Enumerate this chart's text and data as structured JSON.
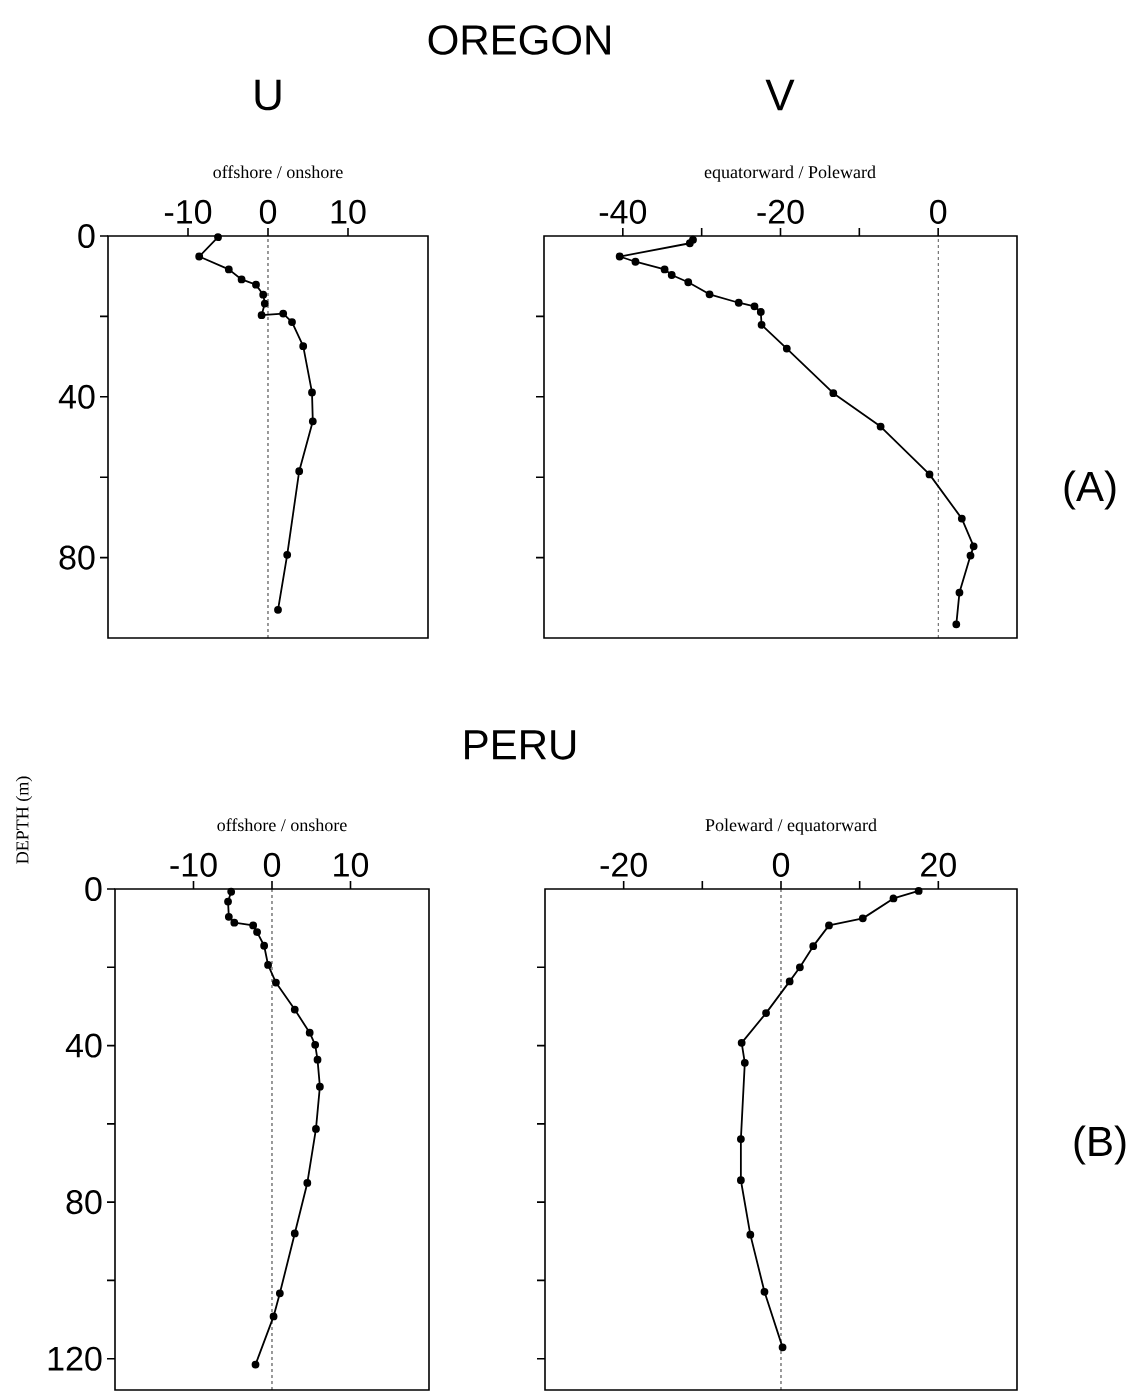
{
  "chart_data": [
    {
      "type": "line",
      "title": "U",
      "xlabel": "offshore  / onshore",
      "annotations": [
        "OREGON"
      ],
      "color": "#000000",
      "marker": "circle",
      "x": [
        -6.25,
        -8.6,
        -4.9,
        -3.3,
        -1.5,
        -0.6,
        -0.4,
        -0.8,
        1.9,
        3.0,
        4.4,
        5.5,
        5.6,
        3.9,
        2.4,
        1.25
      ],
      "values": [
        0.3,
        5.1,
        8.3,
        10.8,
        12.1,
        14.6,
        16.8,
        19.7,
        19.3,
        21.4,
        27.4,
        38.9,
        46.1,
        58.5,
        79.3,
        93
      ],
      "xlim": [
        -20,
        20
      ],
      "ylim": [
        100,
        0
      ],
      "xticks": [
        -10,
        0,
        10
      ],
      "yticks": [
        0,
        {
          "value": 20,
          "label": null
        },
        40,
        {
          "value": 60,
          "label": null
        },
        80
      ],
      "ref_lines": [
        {
          "axis": "x",
          "value": 0,
          "line_style": "dashed"
        }
      ]
    },
    {
      "type": "line",
      "title": "V",
      "xlabel": "equatorward  / Poleward",
      "annotations": [
        "(A)"
      ],
      "color": "#000000",
      "marker": "circle",
      "x": [
        -31.1,
        -31.5,
        -40.4,
        -38.4,
        -34.7,
        -33.8,
        -31.7,
        -29.0,
        -25.3,
        -23.3,
        -22.5,
        -22.4,
        -19.2,
        -13.3,
        -7.3,
        -1.1,
        3.0,
        4.5,
        4.1,
        2.7,
        2.3
      ],
      "values": [
        0.9,
        1.8,
        5.1,
        6.4,
        8.3,
        9.7,
        11.5,
        14.5,
        16.6,
        17.5,
        18.9,
        22.1,
        28.0,
        39.1,
        47.4,
        59.3,
        70.3,
        77.2,
        79.5,
        88.7,
        96.6
      ],
      "xlim": [
        -50,
        10
      ],
      "ylim": [
        100,
        0
      ],
      "xticks": [
        -40,
        {
          "value": -30,
          "label": null
        },
        -20,
        {
          "value": -10,
          "label": null
        },
        0
      ],
      "yticks": [
        20,
        40,
        60,
        80
      ],
      "tick_labels": "x",
      "ref_lines": [
        {
          "axis": "x",
          "value": 0,
          "line_style": "dashed"
        }
      ]
    },
    {
      "type": "line",
      "xlabel": "offshore  / onshore",
      "ylabel": "DEPTH  (m)",
      "annotations": [
        "PERU"
      ],
      "color": "#000000",
      "marker": "circle",
      "x": [
        -5.2,
        -5.6,
        -5.5,
        -4.8,
        -2.4,
        -1.9,
        -1.0,
        -0.5,
        0.5,
        2.9,
        4.8,
        5.5,
        5.8,
        6.1,
        5.6,
        4.5,
        2.9,
        1.0,
        0.2,
        -2.1
      ],
      "values": [
        0.7,
        3.2,
        7.1,
        8.6,
        9.3,
        11.0,
        14.5,
        19.4,
        23.9,
        30.8,
        36.7,
        39.8,
        43.6,
        50.5,
        61.3,
        75.1,
        88.0,
        103.3,
        109.2,
        121.5
      ],
      "xlim": [
        -20,
        20
      ],
      "ylim": [
        128,
        0
      ],
      "xticks": [
        -10,
        0,
        10
      ],
      "yticks": [
        0,
        {
          "value": 20,
          "label": null
        },
        40,
        {
          "value": 60,
          "label": null
        },
        80,
        {
          "value": 100,
          "label": null
        },
        120
      ],
      "ref_lines": [
        {
          "axis": "x",
          "value": 0,
          "line_style": "dashed"
        }
      ]
    },
    {
      "type": "line",
      "xlabel": "Poleward  / equatorward",
      "annotations": [
        "(B)"
      ],
      "color": "#000000",
      "marker": "circle",
      "x": [
        17.5,
        14.3,
        10.4,
        6.1,
        4.1,
        2.4,
        1.1,
        -1.9,
        -5.0,
        -4.6,
        -5.1,
        -5.1,
        -3.9,
        -2.1,
        0.2
      ],
      "values": [
        0.5,
        2.4,
        7.5,
        9.3,
        14.6,
        20.0,
        23.6,
        31.7,
        39.3,
        44.4,
        63.9,
        74.4,
        88.3,
        102.9,
        117.1
      ],
      "xlim": [
        -30,
        30
      ],
      "ylim": [
        128,
        0
      ],
      "xticks": [
        -20,
        {
          "value": -10,
          "label": null
        },
        0,
        {
          "value": 10,
          "label": null
        },
        20
      ],
      "yticks": [
        20,
        40,
        60,
        80,
        100,
        120
      ],
      "tick_labels": "x",
      "ref_lines": [
        {
          "axis": "x",
          "value": 0,
          "line_style": "dashed"
        }
      ]
    }
  ]
}
